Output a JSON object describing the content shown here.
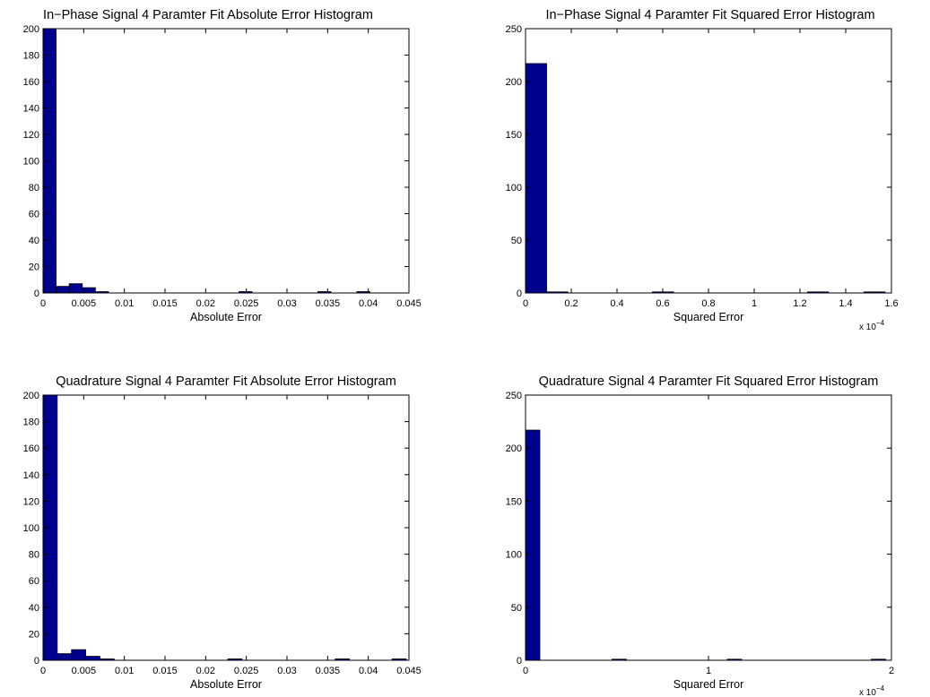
{
  "colors": {
    "bar": "#00008F",
    "edge": "#000000"
  },
  "chart_data": [
    {
      "type": "bar",
      "title": "In−Phase Signal 4 Paramter Fit Absolute Error Histogram",
      "xlabel": "Absolute Error",
      "ylabel": "",
      "xlim": [
        0,
        0.045
      ],
      "ylim": [
        0,
        200
      ],
      "xticks": [
        0,
        0.005,
        0.01,
        0.015,
        0.02,
        0.025,
        0.03,
        0.035,
        0.04,
        0.045
      ],
      "xtick_labels": [
        "0",
        "0.005",
        "0.01",
        "0.015",
        "0.02",
        "0.025",
        "0.03",
        "0.035",
        "0.04",
        "0.045"
      ],
      "yticks": [
        0,
        20,
        40,
        60,
        80,
        100,
        120,
        140,
        160,
        180,
        200
      ],
      "ytick_labels": [
        "0",
        "20",
        "40",
        "60",
        "80",
        "100",
        "120",
        "140",
        "160",
        "180",
        "200"
      ],
      "x_exponent": "",
      "bin_width": 0.00161,
      "x": [
        0.0008,
        0.00241,
        0.00402,
        0.00563,
        0.00724,
        0.0249,
        0.0346,
        0.0394
      ],
      "values": [
        200,
        5,
        7,
        4,
        1,
        1,
        1,
        1
      ]
    },
    {
      "type": "bar",
      "title": "In−Phase Signal 4 Paramter Fit Squared Error Histogram",
      "xlabel": "Squared Error",
      "ylabel": "",
      "xlim": [
        0,
        1.6
      ],
      "ylim": [
        0,
        250
      ],
      "xticks": [
        0,
        0.2,
        0.4,
        0.6,
        0.8,
        1,
        1.2,
        1.4,
        1.6
      ],
      "xtick_labels": [
        "0",
        "0.2",
        "0.4",
        "0.6",
        "0.8",
        "1",
        "1.2",
        "1.4",
        "1.6"
      ],
      "yticks": [
        0,
        50,
        100,
        150,
        200,
        250
      ],
      "ytick_labels": [
        "0",
        "50",
        "100",
        "150",
        "200",
        "250"
      ],
      "x_exponent": "x 10",
      "x_exponent_power": "−4",
      "bin_width": 0.0925,
      "x": [
        0.046,
        0.139,
        0.601,
        1.279,
        1.526
      ],
      "values": [
        217,
        1,
        1,
        1,
        1
      ]
    },
    {
      "type": "bar",
      "title": "Quadrature Signal 4 Paramter Fit Absolute Error Histogram",
      "xlabel": "Absolute Error",
      "ylabel": "",
      "xlim": [
        0,
        0.045
      ],
      "ylim": [
        0,
        200
      ],
      "xticks": [
        0,
        0.005,
        0.01,
        0.015,
        0.02,
        0.025,
        0.03,
        0.035,
        0.04,
        0.045
      ],
      "xtick_labels": [
        "0",
        "0.005",
        "0.01",
        "0.015",
        "0.02",
        "0.025",
        "0.03",
        "0.035",
        "0.04",
        "0.045"
      ],
      "yticks": [
        0,
        20,
        40,
        60,
        80,
        100,
        120,
        140,
        160,
        180,
        200
      ],
      "ytick_labels": [
        "0",
        "20",
        "40",
        "60",
        "80",
        "100",
        "120",
        "140",
        "160",
        "180",
        "200"
      ],
      "x_exponent": "",
      "bin_width": 0.00175,
      "x": [
        0.00087,
        0.00262,
        0.00437,
        0.00612,
        0.00787,
        0.0236,
        0.0368,
        0.0438
      ],
      "values": [
        200,
        5,
        8,
        3,
        1,
        1,
        1,
        1
      ]
    },
    {
      "type": "bar",
      "title": "Quadrature Signal 4 Paramter Fit Squared Error Histogram",
      "xlabel": "Squared Error",
      "ylabel": "",
      "xlim": [
        0,
        2
      ],
      "ylim": [
        0,
        250
      ],
      "xticks": [
        0,
        1,
        2
      ],
      "xtick_labels": [
        "0",
        "1",
        "2"
      ],
      "yticks": [
        0,
        50,
        100,
        150,
        200,
        250
      ],
      "ytick_labels": [
        "0",
        "50",
        "100",
        "150",
        "200",
        "250"
      ],
      "x_exponent": "x 10",
      "x_exponent_power": "−4",
      "bin_width": 0.0787,
      "x": [
        0.039,
        0.512,
        1.142,
        1.929
      ],
      "values": [
        217,
        1,
        1,
        1
      ]
    }
  ]
}
